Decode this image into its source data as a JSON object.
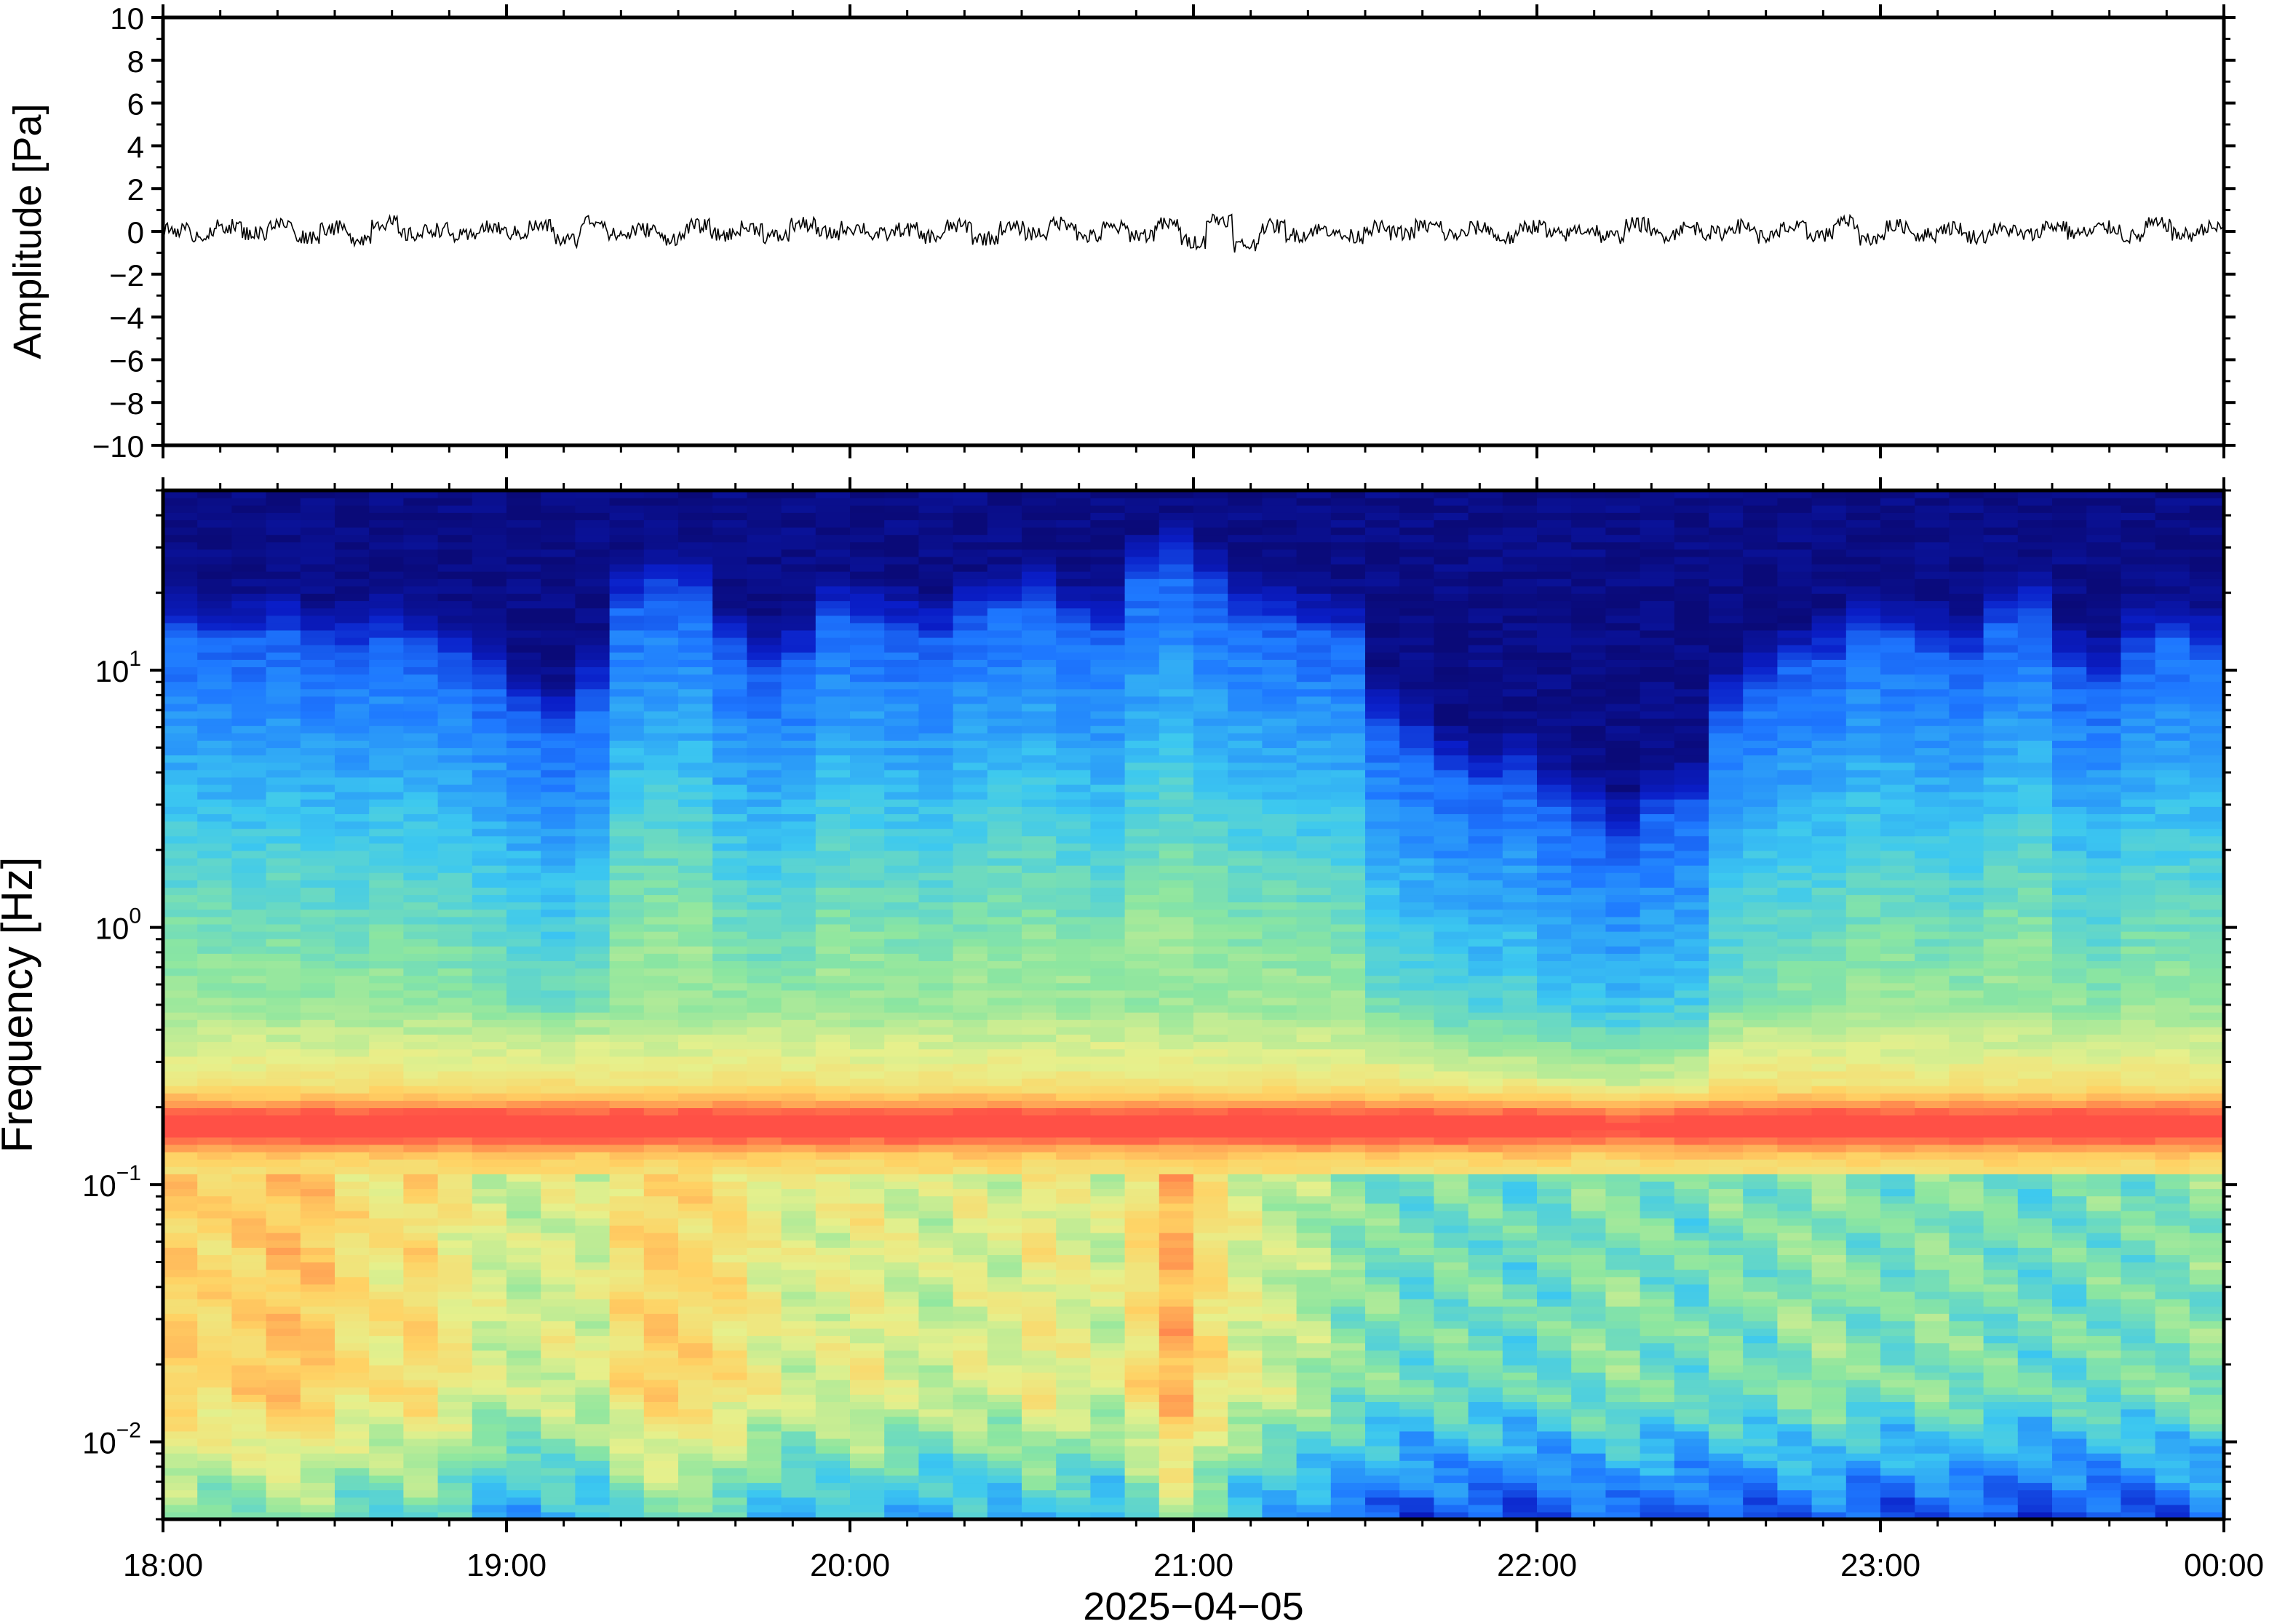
{
  "chart_data": [
    {
      "type": "line",
      "ylabel": "Amplitude [Pa]",
      "ylim": [
        -10,
        10
      ],
      "yticks": [
        10,
        8,
        6,
        4,
        2,
        0,
        -2,
        -4,
        -6,
        -8,
        -10
      ],
      "ytick_labels": [
        "10",
        "8",
        "6",
        "4",
        "2",
        "0",
        "−2",
        "−4",
        "−6",
        "−8",
        "−10"
      ],
      "xlim": [
        "18:00",
        "00:00"
      ],
      "series": [
        {
          "x_start": "18:00",
          "x_end": "00:00",
          "values_note_free": true,
          "values": [
            0.1,
            -0.2,
            0.3,
            -0.1,
            0.4,
            -0.3,
            0.2,
            -0.4,
            0.5,
            -0.2,
            0.1,
            -0.3,
            0.2,
            -0.1,
            0.3,
            -0.5,
            0.6,
            -0.2,
            0.1,
            -0.4,
            0.3,
            -0.2,
            0.2,
            -0.3,
            0.4,
            -0.1,
            0.2,
            -0.2,
            0.1,
            -0.3,
            0.3,
            -0.4,
            0.2,
            -0.1,
            0.5,
            -0.3,
            0.2,
            -0.2,
            0.4,
            -0.6,
            0.7,
            -0.8,
            0.3,
            -0.2,
            0.1,
            -0.3,
            0.2,
            -0.1,
            0.3,
            -0.2,
            0.2,
            -0.4,
            0.3,
            -0.2,
            0.1,
            -0.3,
            0.4,
            -0.2,
            0.2,
            -0.1,
            0.3,
            -0.3,
            0.2,
            -0.2,
            0.5,
            -0.4,
            0.3,
            -0.2,
            0.2,
            -0.3,
            0.1,
            -0.2,
            0.3,
            -0.1,
            0.2,
            -0.3,
            0.4,
            -0.2,
            0.2,
            -0.1
          ]
        }
      ]
    },
    {
      "type": "heatmap",
      "ylabel": "Frequency [Hz]",
      "xlabel": "2025−04−05",
      "x_tick_labels": [
        "18:00",
        "19:00",
        "20:00",
        "21:00",
        "22:00",
        "23:00",
        "00:00"
      ],
      "y_tick_labels": [
        {
          "value": 10,
          "base": "10",
          "exp": "1"
        },
        {
          "value": 1,
          "base": "10",
          "exp": "0"
        },
        {
          "value": 0.1,
          "base": "10",
          "exp": "−1"
        },
        {
          "value": 0.01,
          "base": "10",
          "exp": "−2"
        }
      ],
      "y_scale": "log",
      "ylim": [
        0.005,
        50
      ],
      "xlim": [
        "18:00",
        "00:00"
      ],
      "colormap": [
        "#0a0a78",
        "#0a1ec8",
        "#1e78ff",
        "#3cc8f0",
        "#8ce6a0",
        "#e6f08c",
        "#ffd264",
        "#ff9650",
        "#ff5046"
      ],
      "time_columns": 60,
      "upper_cutoff_hz_by_column": [
        14,
        13,
        13,
        14,
        12,
        12,
        13,
        12,
        11,
        9,
        7,
        6,
        8,
        18,
        20,
        19,
        12,
        10,
        11,
        16,
        15,
        14,
        13,
        16,
        17,
        18,
        15,
        14,
        22,
        25,
        20,
        16,
        15,
        14,
        13,
        6,
        5,
        4,
        3.5,
        4,
        3,
        2.5,
        2.2,
        2.8,
        3,
        7,
        9,
        10,
        11,
        14,
        13,
        12,
        11,
        15,
        16,
        10,
        9,
        12,
        13,
        12
      ],
      "band_peak_hz": 0.17,
      "low_freq_energy_by_column": [
        0.75,
        0.72,
        0.74,
        0.78,
        0.76,
        0.7,
        0.68,
        0.72,
        0.66,
        0.6,
        0.58,
        0.62,
        0.6,
        0.7,
        0.75,
        0.72,
        0.7,
        0.64,
        0.6,
        0.62,
        0.65,
        0.6,
        0.58,
        0.62,
        0.6,
        0.66,
        0.62,
        0.6,
        0.7,
        0.82,
        0.7,
        0.62,
        0.58,
        0.55,
        0.5,
        0.48,
        0.45,
        0.47,
        0.46,
        0.44,
        0.45,
        0.48,
        0.5,
        0.47,
        0.45,
        0.48,
        0.46,
        0.5,
        0.52,
        0.48,
        0.46,
        0.5,
        0.48,
        0.46,
        0.44,
        0.45,
        0.47,
        0.46,
        0.48,
        0.5
      ]
    }
  ]
}
